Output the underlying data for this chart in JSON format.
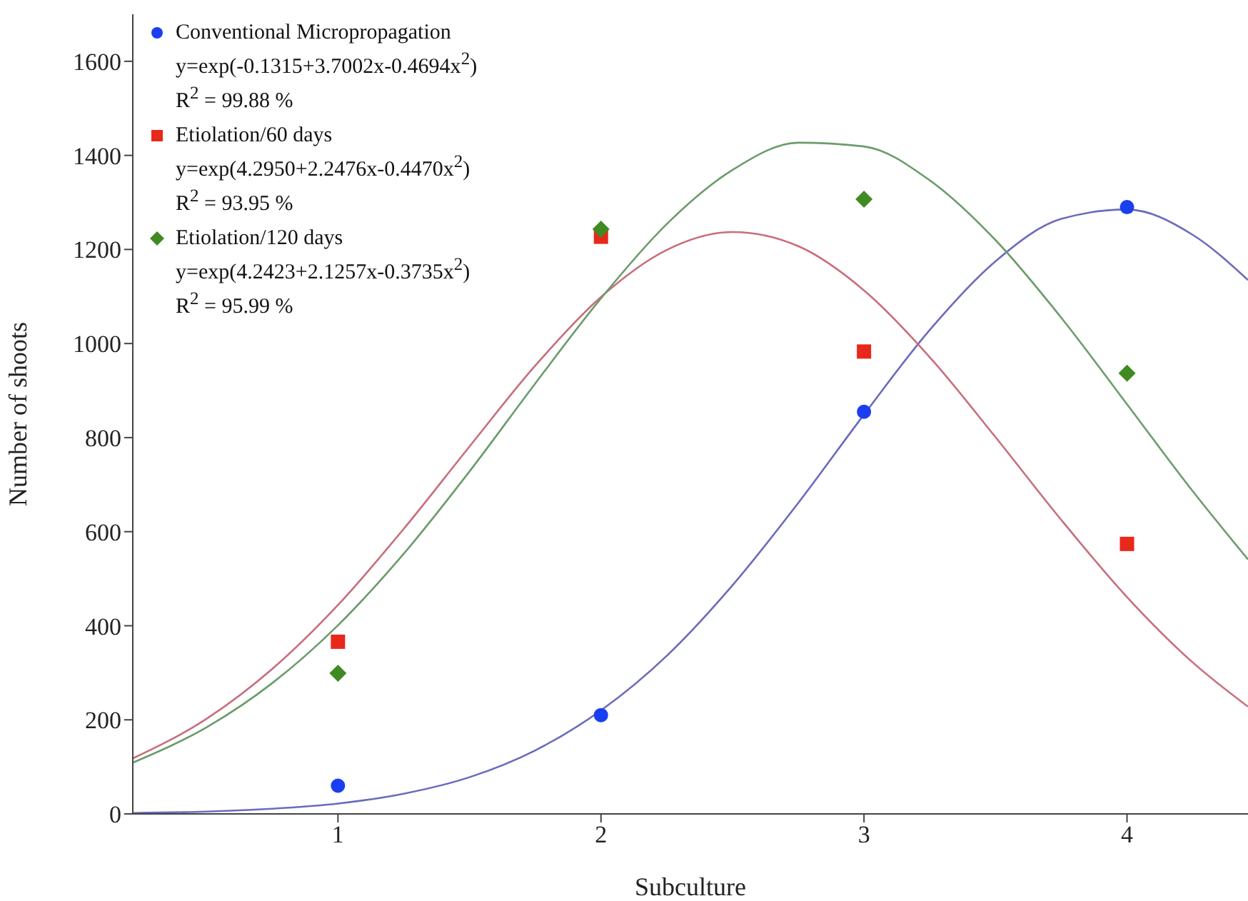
{
  "chart_data": {
    "type": "scatter",
    "xlabel": "Subculture",
    "ylabel": "Number of shoots",
    "x": [
      1,
      2,
      3,
      4
    ],
    "xlim": [
      0.22,
      4.46
    ],
    "xticks": [
      1,
      2,
      3,
      4
    ],
    "ylim": [
      0,
      1700
    ],
    "yticks": [
      0,
      200,
      400,
      600,
      800,
      1000,
      1200,
      1400,
      1600
    ],
    "legend": "top left",
    "series": [
      {
        "name": "Conventional Micropropagation",
        "color": "#1a3ff0",
        "marker": "circle",
        "values": [
          60,
          210,
          855,
          1290
        ]
      },
      {
        "name": "Etiolation/60 days",
        "color": "#e8281a",
        "marker": "square",
        "values": [
          366,
          1227,
          983,
          574
        ]
      },
      {
        "name": "Etiolation/120 days",
        "color": "#3f8a22",
        "marker": "diamond",
        "values": [
          299,
          1243,
          1307,
          937
        ]
      },
      {
        "type": "line",
        "color": "#6b6bbd",
        "marker": "none",
        "x": [
          0.22,
          0.5,
          0.75,
          1,
          1.25,
          1.5,
          1.75,
          2,
          2.25,
          2.5,
          2.75,
          3,
          3.25,
          3.5,
          3.75,
          4,
          4.25,
          4.46
        ],
        "values": [
          2,
          5,
          11,
          22,
          43,
          78,
          135,
          220,
          336,
          486,
          661,
          849,
          1029,
          1175,
          1265,
          1285,
          1231,
          1135
        ]
      },
      {
        "type": "line",
        "color": "#c86e7c",
        "marker": "none",
        "x": [
          0.22,
          0.5,
          0.75,
          1,
          1.25,
          1.5,
          1.75,
          2,
          2.25,
          2.5,
          2.75,
          3,
          3.25,
          3.5,
          3.75,
          4,
          4.25,
          4.46
        ],
        "values": [
          118,
          202,
          308,
          444,
          606,
          781,
          953,
          1099,
          1199,
          1237,
          1207,
          1113,
          971,
          801,
          625,
          461,
          322,
          228
        ]
      },
      {
        "type": "line",
        "color": "#6c9c6c",
        "marker": "none",
        "x": [
          0.22,
          0.5,
          0.75,
          1,
          1.25,
          1.5,
          1.75,
          2,
          2.25,
          2.5,
          2.75,
          3,
          3.25,
          3.5,
          3.75,
          4,
          4.25,
          4.46
        ],
        "values": [
          109,
          184,
          278,
          401,
          553,
          728,
          915,
          1096,
          1254,
          1369,
          1427,
          1419,
          1347,
          1220,
          1055,
          871,
          686,
          541
        ]
      }
    ],
    "annotations": [
      "y=exp(-0.1315+3.7002x-0.4694x$^{2}$)",
      "R$^{2}$ = 99.88 %",
      "y=exp(4.2950+2.2476x-0.4470x$^{2}$)",
      "R$^{2}$ = 93.95 %",
      "y=exp(4.2423+2.1257x-0.3735x$^{2}$)",
      "R$^{2}$ = 95.99 %"
    ]
  }
}
